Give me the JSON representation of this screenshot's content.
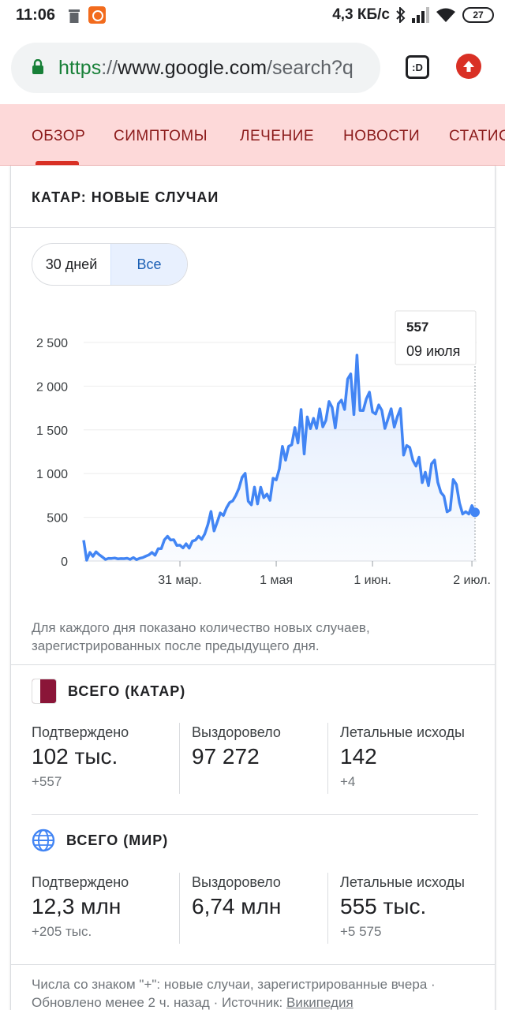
{
  "status_bar": {
    "time": "11:06",
    "net_speed": "4,3 КБ/с",
    "battery": "27"
  },
  "browser": {
    "url_scheme": "https",
    "url_sep": "://",
    "url_host": "www.google.com",
    "url_path": "/search?q",
    "tab_switcher_label": ":D"
  },
  "tabs": [
    {
      "label": "ОБЗОР"
    },
    {
      "label": "СИМПТОМЫ"
    },
    {
      "label": "ЛЕЧЕНИЕ"
    },
    {
      "label": "НОВОСТИ"
    },
    {
      "label": "СТАТИСТИКА"
    }
  ],
  "card": {
    "title": "КАТАР: НОВЫЕ СЛУЧАИ",
    "range_options": [
      "30 дней",
      "Все"
    ],
    "selected_range": "Все",
    "note": "Для каждого дня показано количество новых случаев, зарегистрированных после предыдущего дня."
  },
  "chart_data": {
    "type": "area",
    "title": "",
    "y_ticks": [
      "2 500",
      "2 000",
      "1 500",
      "1 000",
      "500",
      "0"
    ],
    "y_tick_values": [
      2500,
      2000,
      1500,
      1000,
      500,
      0
    ],
    "x_tick_labels": [
      "31 мар.",
      "1 мая",
      "1 июн.",
      "2 июл."
    ],
    "x_tick_days": [
      31,
      62,
      93,
      125
    ],
    "ylim": [
      0,
      2500
    ],
    "grid": true,
    "tooltip": {
      "value": "557",
      "date": "09 июля"
    },
    "series": [
      {
        "values": [
          238,
          9,
          98,
          54,
          106,
          72,
          47,
          18,
          31,
          30,
          34,
          25,
          28,
          27,
          32,
          19,
          40,
          16,
          31,
          39,
          55,
          70,
          98,
          66,
          141,
          142,
          241,
          283,
          240,
          244,
          178,
          181,
          150,
          198,
          147,
          227,
          239,
          283,
          248,
          310,
          418,
          567,
          345,
          446,
          550,
          521,
          608,
          669,
          689,
          751,
          832,
          957,
          1003,
          684,
          643,
          845,
          653,
          844,
          725,
          765,
          694,
          947,
          928,
          1053,
          1311,
          1153,
          1311,
          1329,
          1526,
          1350,
          1733,
          1225,
          1648,
          1514,
          1632,
          1517,
          1740,
          1534,
          1609,
          1824,
          1757,
          1523,
          1800,
          1840,
          1733,
          2081,
          2140,
          1675,
          2355,
          1723,
          1721,
          1853,
          1931,
          1705,
          1681,
          1785,
          1723,
          1516,
          1627,
          1741,
          1532,
          1652,
          1744,
          1212,
          1321,
          1299,
          1149,
          1086,
          1187,
          897,
          1016,
          863,
          1112,
          1154,
          902,
          785,
          743,
          563,
          585,
          932,
          876,
          665,
          538,
          564,
          538,
          634,
          557
        ]
      }
    ]
  },
  "totals_local": {
    "title": "ВСЕГО (КАТАР)",
    "confirmed_label": "Подтверждено",
    "confirmed_value": "102 тыс.",
    "confirmed_delta": "+557",
    "recovered_label": "Выздоровело",
    "recovered_value": "97 272",
    "deaths_label": "Летальные исходы",
    "deaths_value": "142",
    "deaths_delta": "+4"
  },
  "totals_world": {
    "title": "ВСЕГО (МИР)",
    "confirmed_label": "Подтверждено",
    "confirmed_value": "12,3 млн",
    "confirmed_delta": "+205 тыс.",
    "recovered_label": "Выздоровело",
    "recovered_value": "6,74 млн",
    "deaths_label": "Летальные исходы",
    "deaths_value": "555 тыс.",
    "deaths_delta": "+5 575"
  },
  "footer": {
    "text": "Числа со знаком \"+\": новые случаи, зарегистрированные вчера · Обновлено менее 2 ч. назад · Источник: ",
    "source_link": "Википедия"
  },
  "colors": {
    "accent": "#4285f4",
    "tab_bg": "#fdd9d9",
    "tab_text": "#8b1a1a",
    "lock": "#188038",
    "flag": "#8a1538"
  }
}
